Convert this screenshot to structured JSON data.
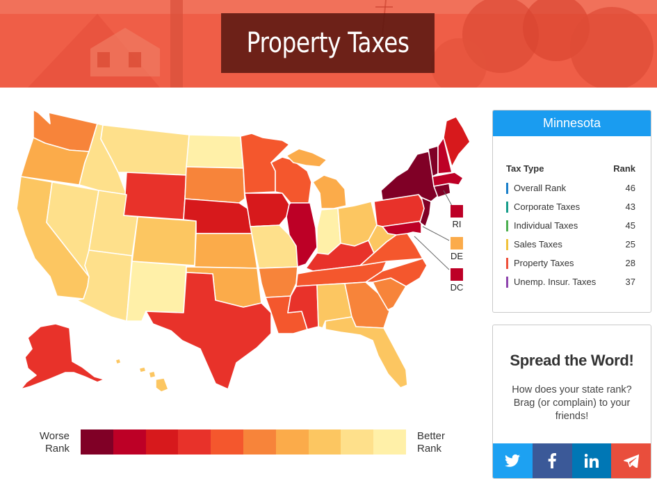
{
  "header": {
    "title": "Property Taxes"
  },
  "panel": {
    "state_name": "Minnesota",
    "col_tax_type": "Tax Type",
    "col_rank": "Rank",
    "rows": [
      {
        "label": "Overall Rank",
        "rank": "46",
        "color": "#1a7fc9"
      },
      {
        "label": "Corporate Taxes",
        "rank": "43",
        "color": "#169c8a"
      },
      {
        "label": "Individual Taxes",
        "rank": "45",
        "color": "#4caf50"
      },
      {
        "label": "Sales Taxes",
        "rank": "25",
        "color": "#f0c23b"
      },
      {
        "label": "Property Taxes",
        "rank": "28",
        "color": "#ee4f3a"
      },
      {
        "label": "Unemp. Insur. Taxes",
        "rank": "37",
        "color": "#8e44ad"
      }
    ]
  },
  "share": {
    "title": "Spread the Word!",
    "text": "How does your state rank? Brag (or complain) to your friends!",
    "buttons": [
      {
        "name": "twitter",
        "icon": "twitter-bird-icon",
        "color": "#1da1f2"
      },
      {
        "name": "facebook",
        "icon": "facebook-f-icon",
        "color": "#3b5998"
      },
      {
        "name": "linkedin",
        "icon": "linkedin-in-icon",
        "color": "#0077b5"
      },
      {
        "name": "telegram",
        "icon": "paper-plane-icon",
        "color": "#e94e3c"
      }
    ]
  },
  "legend": {
    "left_label_1": "Worse",
    "left_label_2": "Rank",
    "right_label_1": "Better",
    "right_label_2": "Rank",
    "colors": [
      "#800026",
      "#bd0026",
      "#d7191c",
      "#e8322a",
      "#f4572d",
      "#f7843a",
      "#fbab4a",
      "#fcc661",
      "#fee08b",
      "#fff0a8"
    ]
  },
  "small_states": [
    {
      "abbr": "RI",
      "color": "#bd0026"
    },
    {
      "abbr": "DE",
      "color": "#fbab4a"
    },
    {
      "abbr": "DC",
      "color": "#bd0026"
    }
  ],
  "states": {
    "WA": "#f7843a",
    "OR": "#fbab4a",
    "CA": "#fcc661",
    "NV": "#fee08b",
    "ID": "#fee08b",
    "MT": "#fee08b",
    "WY": "#e8322a",
    "UT": "#fee08b",
    "AZ": "#fee08b",
    "CO": "#fcc661",
    "NM": "#fff0a8",
    "ND": "#fff0a8",
    "SD": "#f7843a",
    "NE": "#d7191c",
    "KS": "#fbab4a",
    "OK": "#fbab4a",
    "TX": "#e8322a",
    "MN": "#f4572d",
    "IA": "#d7191c",
    "MO": "#fee08b",
    "AR": "#f7843a",
    "LA": "#f4572d",
    "WI": "#f4572d",
    "IL": "#bd0026",
    "MS": "#e8322a",
    "AL": "#fcc661",
    "MI": "#fbab4a",
    "IN": "#fff0a8",
    "OH": "#fcc661",
    "KY": "#e8322a",
    "TN": "#f4572d",
    "GA": "#f7843a",
    "FL": "#fcc661",
    "SC": "#f7843a",
    "NC": "#f4572d",
    "VA": "#f4572d",
    "WV": "#fcc661",
    "PA": "#e8322a",
    "NY": "#800026",
    "VT": "#800026",
    "NH": "#bd0026",
    "ME": "#d7191c",
    "MA": "#bd0026",
    "CT": "#800026",
    "NJ": "#800026",
    "MD": "#bd0026",
    "AK": "#e8322a",
    "HI": "#fcc661"
  }
}
